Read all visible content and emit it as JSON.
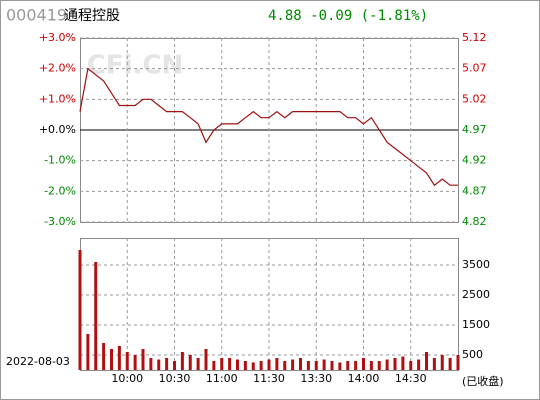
{
  "header": {
    "code": "000419",
    "name": "通程控股",
    "quote": "4.88 -0.09 (-1.81%)",
    "watermark": "CFi.CN",
    "date": "2022-08-03",
    "status": "(已收盘)"
  },
  "chart_data": [
    {
      "type": "line",
      "categories": [
        null,
        null,
        null,
        null,
        null,
        null,
        "10:00",
        null,
        null,
        null,
        null,
        null,
        "10:30",
        null,
        null,
        null,
        null,
        null,
        "11:00",
        null,
        null,
        null,
        null,
        null,
        "11:30",
        null,
        null,
        null,
        null,
        null,
        "13:30",
        null,
        null,
        null,
        null,
        null,
        "14:00",
        null,
        null,
        null,
        null,
        null,
        "14:30",
        null,
        null,
        null,
        null,
        null,
        null
      ],
      "ylim": [
        -3,
        3
      ],
      "yticks": [
        {
          "value": 3,
          "label": "+3.0%"
        },
        {
          "value": 2,
          "label": "+2.0%"
        },
        {
          "value": 1,
          "label": "+1.0%"
        },
        {
          "value": 0,
          "label": "+0.0%"
        },
        {
          "value": -1,
          "label": "-1.0%"
        },
        {
          "value": -2,
          "label": "-2.0%"
        },
        {
          "value": -3,
          "label": "-3.0%"
        }
      ],
      "y2lim": [
        4.82,
        5.12
      ],
      "y2ticks": [
        5.12,
        5.07,
        5.02,
        4.97,
        4.92,
        4.87,
        4.82
      ],
      "series": [
        {
          "color": "#a01010",
          "axis": "y2",
          "values": [
            5.0,
            5.07,
            5.06,
            5.05,
            5.03,
            5.01,
            5.01,
            5.01,
            5.02,
            5.02,
            5.01,
            5.0,
            5.0,
            5.0,
            4.99,
            4.98,
            4.95,
            4.97,
            4.98,
            4.98,
            4.98,
            4.99,
            5.0,
            4.99,
            4.99,
            5.0,
            4.99,
            5.0,
            5.0,
            5.0,
            5.0,
            5.0,
            5.0,
            5.0,
            4.99,
            4.99,
            4.98,
            4.99,
            4.97,
            4.95,
            4.94,
            4.93,
            4.92,
            4.91,
            4.9,
            4.88,
            4.89,
            4.88,
            4.88
          ]
        }
      ],
      "grid": true
    },
    {
      "type": "bar",
      "color": "#b01010",
      "values": [
        4000,
        1200,
        3600,
        900,
        700,
        800,
        600,
        500,
        700,
        400,
        350,
        400,
        300,
        600,
        500,
        400,
        700,
        300,
        400,
        400,
        350,
        300,
        250,
        300,
        350,
        400,
        300,
        350,
        400,
        300,
        300,
        350,
        300,
        250,
        300,
        300,
        400,
        300,
        300,
        350,
        400,
        450,
        300,
        350,
        600,
        400,
        500,
        400,
        500
      ],
      "ylim": [
        0,
        4400
      ],
      "yticks": [
        500,
        1500,
        2500,
        3500
      ],
      "grid": true
    }
  ]
}
